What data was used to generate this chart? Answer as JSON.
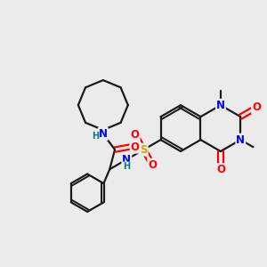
{
  "background_color": "#ebebeb",
  "line_color": "#1a1a1a",
  "bond_width": 1.6,
  "atom_colors": {
    "N": "#0000ff",
    "O": "#ff0000",
    "S": "#ccaa00",
    "H_label": "#008080",
    "C": "#1a1a1a"
  },
  "font_size_atoms": 8.5,
  "font_size_small": 7.0
}
